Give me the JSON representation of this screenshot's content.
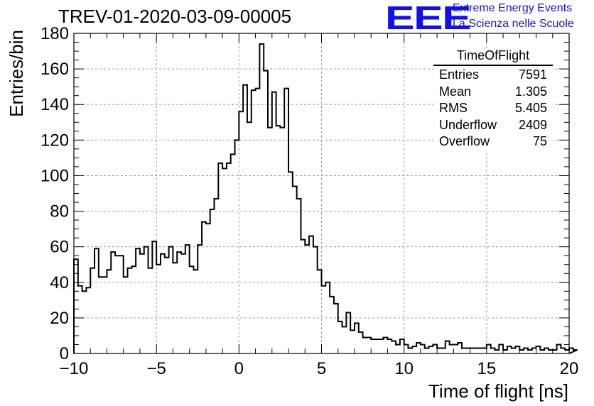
{
  "header": {
    "title": "TREV-01-2020-03-09-00005",
    "logo_text": "EEE",
    "org_line1": "Extreme Energy Events",
    "org_line2": "La Scienza nelle Scuole",
    "logo_color": "#1010ee"
  },
  "stats_box": {
    "name": "TimeOfFlight",
    "rows": [
      {
        "label": "Entries",
        "value": "7591"
      },
      {
        "label": "Mean",
        "value": "1.305"
      },
      {
        "label": "RMS",
        "value": "5.405"
      },
      {
        "label": "Underflow",
        "value": "2409"
      },
      {
        "label": "Overflow",
        "value": "75"
      }
    ]
  },
  "chart_data": {
    "type": "histogram",
    "title": "TREV-01-2020-03-09-00005",
    "xlabel": "Time of flight [ns]",
    "ylabel": "Entries/bin",
    "xlim": [
      -10,
      20
    ],
    "ylim": [
      0,
      180
    ],
    "bin_width": 0.25,
    "grid": true,
    "x_ticks": [
      -10,
      -5,
      0,
      5,
      10,
      15,
      20
    ],
    "y_ticks": [
      0,
      20,
      40,
      60,
      80,
      100,
      120,
      140,
      160,
      180
    ],
    "values": [
      53,
      38,
      35,
      37,
      48,
      59,
      43,
      43,
      47,
      57,
      55,
      55,
      43,
      48,
      49,
      59,
      56,
      60,
      48,
      63,
      50,
      56,
      54,
      60,
      51,
      57,
      56,
      61,
      49,
      47,
      61,
      74,
      73,
      81,
      87,
      107,
      104,
      107,
      112,
      120,
      136,
      151,
      130,
      148,
      149,
      174,
      159,
      127,
      147,
      128,
      127,
      149,
      102,
      94,
      87,
      64,
      61,
      66,
      60,
      47,
      38,
      40,
      32,
      28,
      18,
      15,
      23,
      13,
      17,
      12,
      9,
      9,
      8,
      8,
      8,
      9,
      8,
      7,
      5,
      8,
      5,
      3,
      4,
      6,
      5,
      3,
      4,
      5,
      3,
      3,
      7,
      5,
      5,
      6,
      3,
      3,
      3,
      3,
      3,
      3,
      5,
      3,
      2,
      5,
      2,
      4,
      3,
      4,
      2,
      3,
      2,
      3,
      4,
      2,
      3,
      2,
      2,
      5,
      3,
      2,
      3,
      2
    ]
  }
}
